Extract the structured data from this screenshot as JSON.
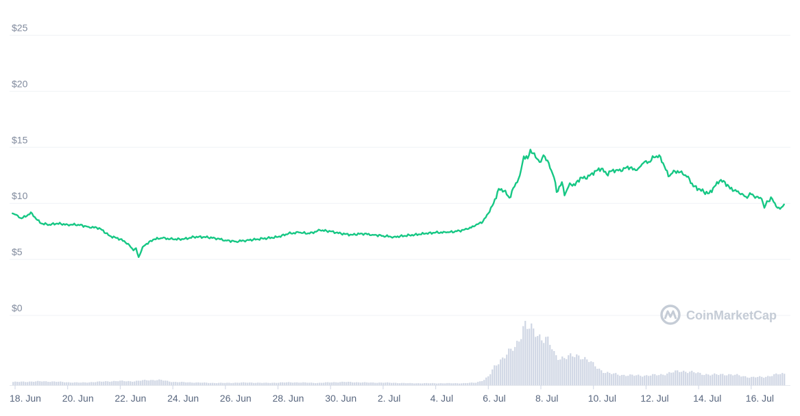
{
  "chart_data": {
    "type": "line",
    "title": "",
    "xlabel": "",
    "ylabel": "",
    "ylim": [
      0,
      25
    ],
    "yticks": [
      {
        "value": 25,
        "label": "$25"
      },
      {
        "value": 20,
        "label": "$20"
      },
      {
        "value": 15,
        "label": "$15"
      },
      {
        "value": 10,
        "label": "$10"
      },
      {
        "value": 5,
        "label": "$5"
      },
      {
        "value": 0,
        "label": "$0"
      }
    ],
    "xticks": [
      {
        "day": 0,
        "label": "18. Jun"
      },
      {
        "day": 2,
        "label": "20. Jun"
      },
      {
        "day": 4,
        "label": "22. Jun"
      },
      {
        "day": 6,
        "label": "24. Jun"
      },
      {
        "day": 8,
        "label": "26. Jun"
      },
      {
        "day": 10,
        "label": "28. Jun"
      },
      {
        "day": 12,
        "label": "30. Jun"
      },
      {
        "day": 14,
        "label": "2. Jul"
      },
      {
        "day": 16,
        "label": "4. Jul"
      },
      {
        "day": 18,
        "label": "6. Jul"
      },
      {
        "day": 20,
        "label": "8. Jul"
      },
      {
        "day": 22,
        "label": "10. Jul"
      },
      {
        "day": 24,
        "label": "12. Jul"
      },
      {
        "day": 26,
        "label": "14. Jul"
      },
      {
        "day": 28,
        "label": "16. Jul"
      }
    ],
    "grid": true,
    "colors": {
      "price_line": "#16c784",
      "volume_bar": "#cfd6e4"
    },
    "series": [
      {
        "values": [
          [
            -0.1,
            9.1
          ],
          [
            0.0,
            9.0
          ],
          [
            0.2,
            8.7
          ],
          [
            0.4,
            8.8
          ],
          [
            0.6,
            9.2
          ],
          [
            0.8,
            8.6
          ],
          [
            1.0,
            8.2
          ],
          [
            1.3,
            8.1
          ],
          [
            1.6,
            8.2
          ],
          [
            2.0,
            8.1
          ],
          [
            2.4,
            8.1
          ],
          [
            2.8,
            7.9
          ],
          [
            3.2,
            7.8
          ],
          [
            3.6,
            7.1
          ],
          [
            4.0,
            6.8
          ],
          [
            4.3,
            6.4
          ],
          [
            4.5,
            5.8
          ],
          [
            4.6,
            6.0
          ],
          [
            4.7,
            5.2
          ],
          [
            4.85,
            6.1
          ],
          [
            5.0,
            6.4
          ],
          [
            5.3,
            6.8
          ],
          [
            5.6,
            6.9
          ],
          [
            6.0,
            6.8
          ],
          [
            6.4,
            6.8
          ],
          [
            6.8,
            7.0
          ],
          [
            7.2,
            7.0
          ],
          [
            7.6,
            6.9
          ],
          [
            8.0,
            6.7
          ],
          [
            8.4,
            6.6
          ],
          [
            8.8,
            6.7
          ],
          [
            9.2,
            6.8
          ],
          [
            9.6,
            6.9
          ],
          [
            10.0,
            7.0
          ],
          [
            10.4,
            7.3
          ],
          [
            10.8,
            7.4
          ],
          [
            11.2,
            7.3
          ],
          [
            11.6,
            7.6
          ],
          [
            12.0,
            7.5
          ],
          [
            12.4,
            7.3
          ],
          [
            12.8,
            7.2
          ],
          [
            13.2,
            7.3
          ],
          [
            13.6,
            7.2
          ],
          [
            14.0,
            7.1
          ],
          [
            14.4,
            7.0
          ],
          [
            14.8,
            7.1
          ],
          [
            15.2,
            7.2
          ],
          [
            15.6,
            7.3
          ],
          [
            16.0,
            7.4
          ],
          [
            16.4,
            7.4
          ],
          [
            16.8,
            7.5
          ],
          [
            17.2,
            7.7
          ],
          [
            17.5,
            8.0
          ],
          [
            17.8,
            8.4
          ],
          [
            18.0,
            9.1
          ],
          [
            18.2,
            10.0
          ],
          [
            18.4,
            11.3
          ],
          [
            18.6,
            11.1
          ],
          [
            18.8,
            10.5
          ],
          [
            19.0,
            11.5
          ],
          [
            19.2,
            12.5
          ],
          [
            19.35,
            14.2
          ],
          [
            19.5,
            14.0
          ],
          [
            19.6,
            14.8
          ],
          [
            19.8,
            14.1
          ],
          [
            20.0,
            13.7
          ],
          [
            20.1,
            14.3
          ],
          [
            20.3,
            13.6
          ],
          [
            20.5,
            12.3
          ],
          [
            20.6,
            11.0
          ],
          [
            20.8,
            11.9
          ],
          [
            20.9,
            10.7
          ],
          [
            21.1,
            11.8
          ],
          [
            21.3,
            11.6
          ],
          [
            21.5,
            12.3
          ],
          [
            21.7,
            12.2
          ],
          [
            21.9,
            12.6
          ],
          [
            22.1,
            12.9
          ],
          [
            22.3,
            13.1
          ],
          [
            22.5,
            12.6
          ],
          [
            22.7,
            12.9
          ],
          [
            22.9,
            13.0
          ],
          [
            23.1,
            12.9
          ],
          [
            23.3,
            13.3
          ],
          [
            23.5,
            13.0
          ],
          [
            23.7,
            13.1
          ],
          [
            23.9,
            13.6
          ],
          [
            24.1,
            13.7
          ],
          [
            24.3,
            14.1
          ],
          [
            24.5,
            14.3
          ],
          [
            24.7,
            13.3
          ],
          [
            24.85,
            12.4
          ],
          [
            25.0,
            12.7
          ],
          [
            25.2,
            12.9
          ],
          [
            25.4,
            12.6
          ],
          [
            25.6,
            12.4
          ],
          [
            25.8,
            11.5
          ],
          [
            26.0,
            11.3
          ],
          [
            26.2,
            11.0
          ],
          [
            26.4,
            10.9
          ],
          [
            26.6,
            11.5
          ],
          [
            26.8,
            12.0
          ],
          [
            27.0,
            11.9
          ],
          [
            27.2,
            11.3
          ],
          [
            27.4,
            11.2
          ],
          [
            27.6,
            10.8
          ],
          [
            27.8,
            10.6
          ],
          [
            28.0,
            10.8
          ],
          [
            28.2,
            10.6
          ],
          [
            28.4,
            10.4
          ],
          [
            28.5,
            9.6
          ],
          [
            28.6,
            10.2
          ],
          [
            28.8,
            10.4
          ],
          [
            29.0,
            9.6
          ],
          [
            29.1,
            9.5
          ],
          [
            29.25,
            9.9
          ]
        ]
      }
    ],
    "volume": {
      "values": [
        [
          -0.1,
          0.05
        ],
        [
          0.5,
          0.055
        ],
        [
          1.0,
          0.06
        ],
        [
          1.5,
          0.055
        ],
        [
          2.0,
          0.045
        ],
        [
          2.5,
          0.04
        ],
        [
          3.0,
          0.05
        ],
        [
          3.5,
          0.06
        ],
        [
          4.0,
          0.065
        ],
        [
          4.5,
          0.06
        ],
        [
          5.0,
          0.08
        ],
        [
          5.5,
          0.08
        ],
        [
          6.0,
          0.05
        ],
        [
          6.5,
          0.045
        ],
        [
          7.0,
          0.04
        ],
        [
          7.5,
          0.035
        ],
        [
          8.0,
          0.035
        ],
        [
          8.5,
          0.04
        ],
        [
          9.0,
          0.04
        ],
        [
          9.5,
          0.035
        ],
        [
          10.0,
          0.04
        ],
        [
          10.5,
          0.045
        ],
        [
          11.0,
          0.04
        ],
        [
          11.5,
          0.035
        ],
        [
          12.0,
          0.045
        ],
        [
          12.5,
          0.05
        ],
        [
          13.0,
          0.045
        ],
        [
          13.5,
          0.04
        ],
        [
          14.0,
          0.04
        ],
        [
          14.5,
          0.035
        ],
        [
          15.0,
          0.03
        ],
        [
          15.5,
          0.03
        ],
        [
          16.0,
          0.03
        ],
        [
          16.5,
          0.03
        ],
        [
          17.0,
          0.03
        ],
        [
          17.5,
          0.04
        ],
        [
          17.8,
          0.08
        ],
        [
          18.0,
          0.14
        ],
        [
          18.2,
          0.28
        ],
        [
          18.4,
          0.38
        ],
        [
          18.6,
          0.45
        ],
        [
          18.8,
          0.52
        ],
        [
          19.0,
          0.58
        ],
        [
          19.2,
          0.78
        ],
        [
          19.35,
          0.96
        ],
        [
          19.5,
          0.88
        ],
        [
          19.7,
          0.82
        ],
        [
          19.9,
          0.76
        ],
        [
          20.0,
          0.74
        ],
        [
          20.2,
          0.72
        ],
        [
          20.35,
          0.6
        ],
        [
          20.5,
          0.45
        ],
        [
          20.7,
          0.42
        ],
        [
          20.9,
          0.44
        ],
        [
          21.2,
          0.44
        ],
        [
          21.5,
          0.45
        ],
        [
          21.8,
          0.38
        ],
        [
          22.0,
          0.3
        ],
        [
          22.3,
          0.22
        ],
        [
          22.6,
          0.18
        ],
        [
          23.0,
          0.16
        ],
        [
          23.5,
          0.15
        ],
        [
          24.0,
          0.15
        ],
        [
          24.5,
          0.16
        ],
        [
          25.0,
          0.2
        ],
        [
          25.3,
          0.22
        ],
        [
          25.6,
          0.21
        ],
        [
          26.0,
          0.18
        ],
        [
          26.5,
          0.16
        ],
        [
          27.0,
          0.17
        ],
        [
          27.5,
          0.15
        ],
        [
          28.0,
          0.12
        ],
        [
          28.5,
          0.13
        ],
        [
          29.0,
          0.17
        ],
        [
          29.3,
          0.18
        ]
      ]
    }
  },
  "watermark": {
    "text": "CoinMarketCap"
  }
}
